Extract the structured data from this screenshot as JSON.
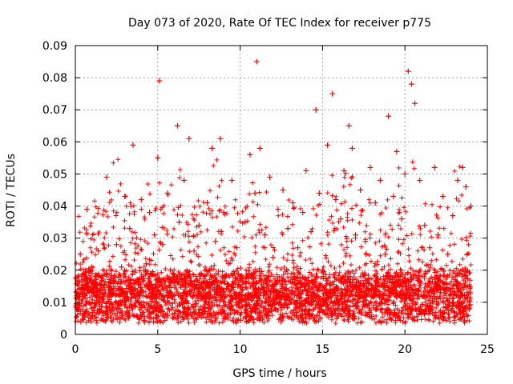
{
  "chart_data": {
    "type": "scatter",
    "title": "Day 073 of 2020, Rate Of TEC Index for receiver p775",
    "xlabel": "GPS time / hours",
    "ylabel": "ROTI / TECUs",
    "xlim": [
      0,
      25
    ],
    "ylim": [
      0,
      0.09
    ],
    "x_ticks": [
      "0",
      "5",
      "10",
      "15",
      "20",
      "25"
    ],
    "y_ticks": [
      "0",
      "0.01",
      "0.02",
      "0.03",
      "0.04",
      "0.05",
      "0.06",
      "0.07",
      "0.08",
      "0.09"
    ],
    "grid": true,
    "marker": "+",
    "color": "#ff0000",
    "series": [
      {
        "x": [
          0.1,
          0.2,
          0.3,
          0.5,
          0.7,
          0.9,
          1.1,
          1.4,
          1.7,
          1.9,
          2.2,
          2.5,
          2.8,
          3.0,
          3.3,
          3.5,
          3.8,
          4.0,
          4.3,
          4.5,
          4.8,
          5.0,
          5.1,
          5.3,
          5.6,
          5.9,
          6.2,
          6.3,
          6.6,
          6.9,
          7.2,
          7.5,
          7.8,
          8.0,
          8.3,
          8.5,
          8.8,
          9.0,
          9.3,
          9.5,
          9.8,
          10.0,
          10.3,
          10.6,
          10.9,
          11.0,
          11.2,
          11.5,
          11.8,
          12.0,
          12.3,
          12.6,
          12.9,
          13.2,
          13.5,
          13.8,
          14.0,
          14.3,
          14.6,
          14.8,
          15.0,
          15.3,
          15.6,
          15.8,
          16.1,
          16.3,
          16.6,
          16.8,
          17.0,
          17.3,
          17.6,
          17.9,
          18.2,
          18.5,
          18.8,
          19.0,
          19.3,
          19.5,
          19.8,
          20.0,
          20.2,
          20.4,
          20.6,
          20.9,
          21.2,
          21.5,
          21.8,
          22.0,
          22.3,
          22.6,
          22.9,
          23.2,
          23.5,
          23.7,
          24.0
        ],
        "y": [
          0.012,
          0.018,
          0.025,
          0.015,
          0.039,
          0.02,
          0.013,
          0.026,
          0.011,
          0.049,
          0.014,
          0.028,
          0.021,
          0.043,
          0.033,
          0.059,
          0.017,
          0.042,
          0.022,
          0.038,
          0.031,
          0.055,
          0.079,
          0.028,
          0.044,
          0.019,
          0.065,
          0.035,
          0.048,
          0.061,
          0.026,
          0.034,
          0.016,
          0.041,
          0.058,
          0.029,
          0.061,
          0.038,
          0.022,
          0.048,
          0.027,
          0.018,
          0.035,
          0.056,
          0.044,
          0.085,
          0.058,
          0.031,
          0.049,
          0.024,
          0.039,
          0.045,
          0.033,
          0.041,
          0.027,
          0.038,
          0.051,
          0.032,
          0.07,
          0.044,
          0.02,
          0.059,
          0.075,
          0.042,
          0.036,
          0.051,
          0.065,
          0.058,
          0.031,
          0.045,
          0.029,
          0.052,
          0.041,
          0.048,
          0.025,
          0.068,
          0.043,
          0.057,
          0.036,
          0.05,
          0.082,
          0.078,
          0.072,
          0.048,
          0.034,
          0.027,
          0.052,
          0.031,
          0.043,
          0.025,
          0.037,
          0.048,
          0.052,
          0.046,
          0.04
        ]
      }
    ]
  }
}
